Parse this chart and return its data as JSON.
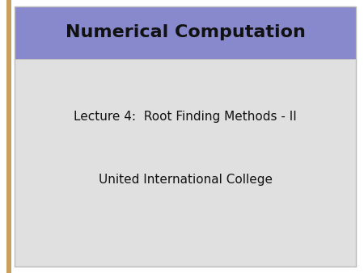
{
  "title": "Numerical Computation",
  "line1": "Lecture 4:  Root Finding Methods - II",
  "line2": "United International College",
  "outer_bg": "#ffffff",
  "header_bg": "#8888cc",
  "body_bg": "#e0e0e0",
  "header_text_color": "#111111",
  "body_text_color": "#111111",
  "left_strip_color": "#c8a060",
  "slide_border_color": "#bbbbbb",
  "title_fontsize": 16,
  "body_fontsize": 11
}
